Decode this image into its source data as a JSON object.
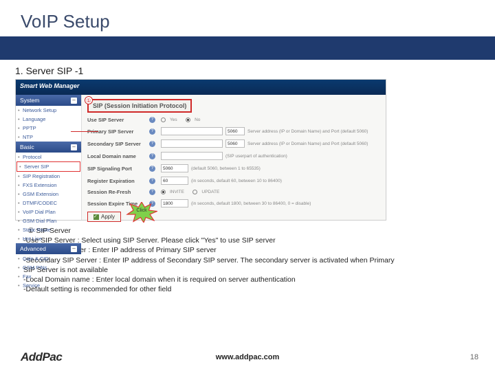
{
  "title": "VoIP Setup",
  "section": "1. Server SIP -1",
  "colors": {
    "brand": "#1f3a6e",
    "accent": "#d02828",
    "burst_fill": "#7fd04a",
    "burst_stroke": "#e03030"
  },
  "swm": {
    "header": "Smart Web Manager"
  },
  "sidebar": {
    "groups": [
      {
        "label": "System",
        "items": [
          "Network Setup",
          "Language",
          "PPTP",
          "NTP"
        ]
      },
      {
        "label": "Basic",
        "items": [
          "Protocol",
          "Server SIP",
          "SIP Registration",
          "FXS Extension",
          "GSM Extension",
          "DTMF/CODEC",
          "VoIP Dial Plan",
          "GSM Dial Plan",
          "Static Route",
          "Hot Line"
        ],
        "highlight_index": 1
      },
      {
        "label": "Advanced",
        "items": [
          "Gain & CID",
          "GSM PINs",
          "Fax",
          "Service"
        ]
      }
    ]
  },
  "content_title": "SIP (Session Initiation Protocol)",
  "marker": "①",
  "form": [
    {
      "label": "Use SIP Server",
      "type": "radio",
      "options": [
        "Yes",
        "No"
      ],
      "selected": 1
    },
    {
      "label": "Primary SIP Server",
      "type": "ipport",
      "port": "5060",
      "hint": "Server address (IP or Domain Name) and Port (default 5060)"
    },
    {
      "label": "Secondary SIP Server",
      "type": "ipport",
      "port": "5060",
      "hint": "Server address (IP or Domain Name) and Port (default 5060)"
    },
    {
      "label": "Local Domain name",
      "type": "text",
      "hint": "(SIP userpart of authentication)"
    },
    {
      "label": "SIP Signaling Port",
      "type": "port",
      "port": "5060",
      "hint": "(default 5060, between 1 to 65535)"
    },
    {
      "label": "Register Expiration",
      "type": "port",
      "port": "60",
      "hint": "(in seconds, default 60, between 10 to 86400)"
    },
    {
      "label": "Session Re-Fresh",
      "type": "radio",
      "options": [
        "INVITE",
        "UPDATE"
      ],
      "selected": 0
    },
    {
      "label": "Session Expire Time",
      "type": "port",
      "port": "1800",
      "hint": "(in seconds, default 1800, between 30 to 86400, 0 = disable)"
    }
  ],
  "apply_label": "Apply",
  "burst_label": "Click",
  "notes": {
    "head": "① SIP Server",
    "lines": [
      "-Use SIP Server : Select using SIP Server. Please click \"Yes\" to use SIP server",
      "-Primary SIP server : Enter IP address of Primary SIP server",
      "-Secondary SIP Server : Enter IP address of Secondary SIP server. The secondary server is activated when Primary",
      " SIP Server is not available",
      "-Local Domain name : Enter local domain when it is required on server authentication",
      "-Default setting is recommended for other field"
    ]
  },
  "footer": {
    "logo": "AddPac",
    "url": "www.addpac.com",
    "page": "18"
  }
}
